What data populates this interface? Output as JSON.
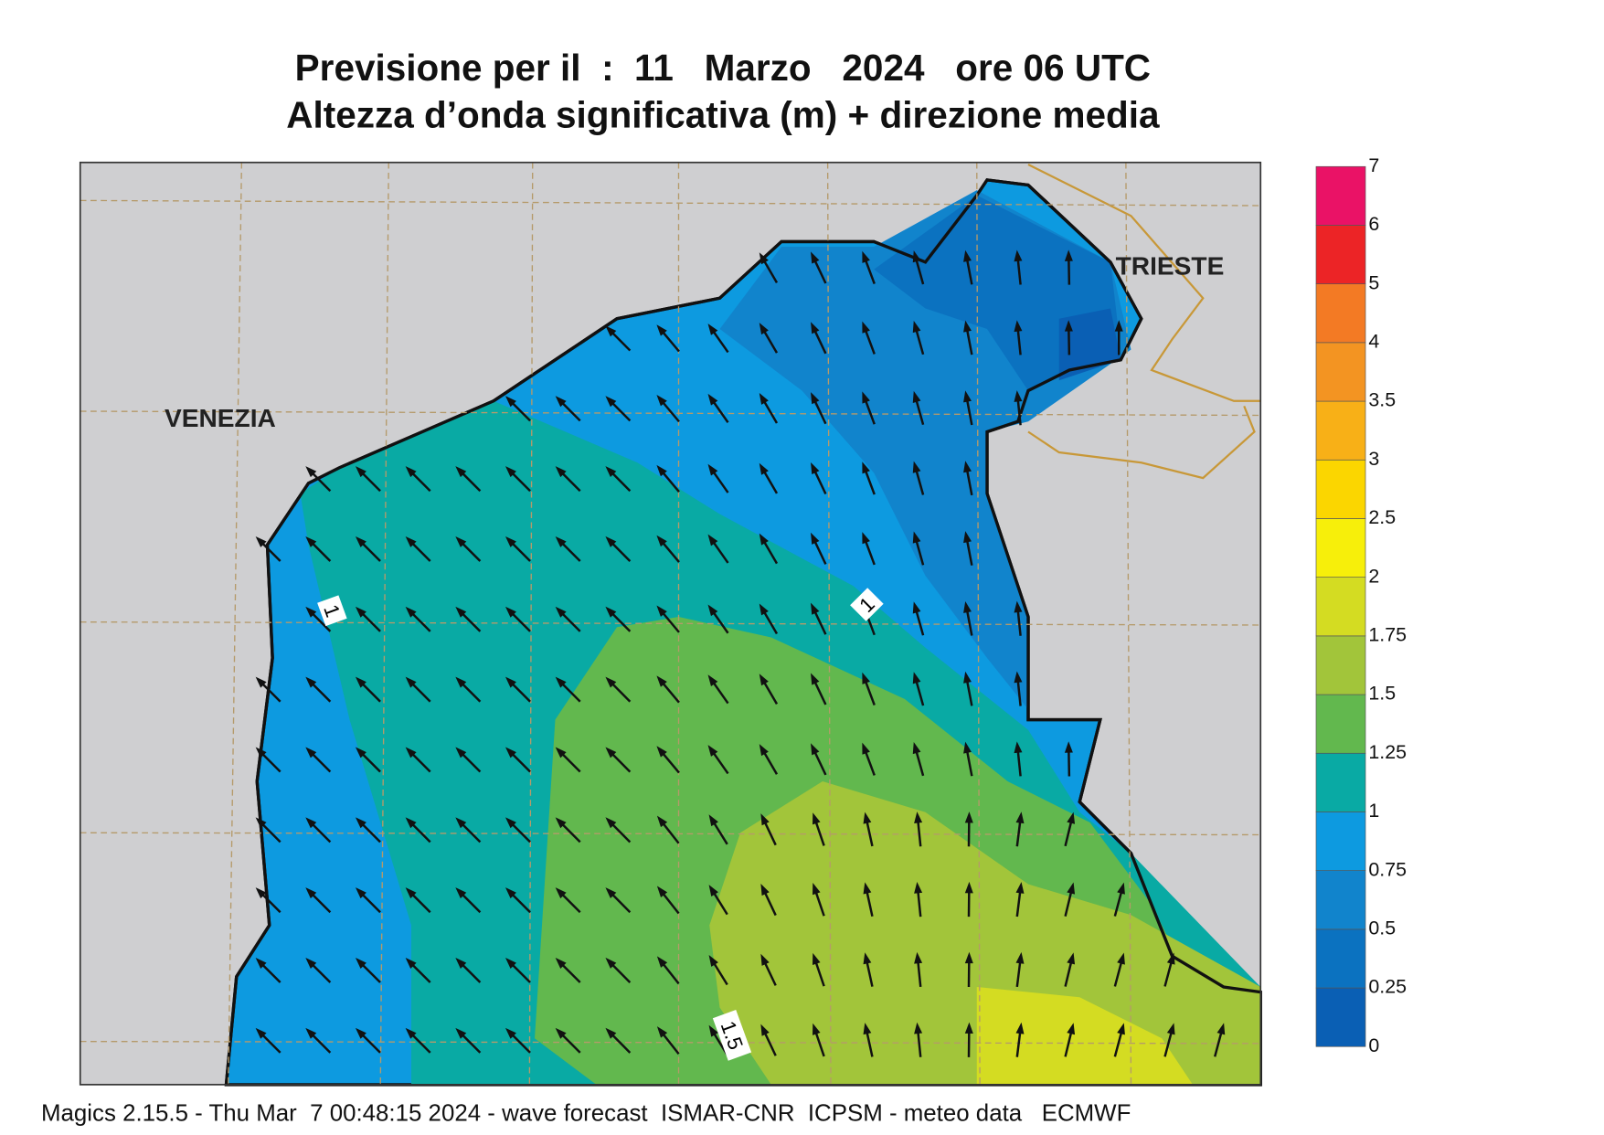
{
  "header": {
    "title": "Previsione per il  :  11   Marzo   2024   ore 06 UTC",
    "subtitle": "Altezza d’onda significativa (m) + direzione media"
  },
  "map": {
    "places": [
      "VENEZIA",
      "TRIESTE"
    ],
    "contour_labels": [
      "1",
      "1",
      "1.5"
    ]
  },
  "legend": {
    "levels": [
      0,
      0.25,
      0.5,
      0.75,
      1,
      1.25,
      1.5,
      1.75,
      2,
      2.5,
      3,
      3.5,
      4,
      5,
      6,
      7
    ],
    "colors": [
      "#0a5fb4",
      "#0b72c0",
      "#1184cc",
      "#0d9ae0",
      "#09aaa4",
      "#62b84e",
      "#a2c53a",
      "#d4dc22",
      "#f7ef0a",
      "#fbd600",
      "#f8b017",
      "#f39422",
      "#f37a24",
      "#ec2426",
      "#ea1266"
    ]
  },
  "footer": "Magics 2.15.5 - Thu Mar  7 00:48:15 2024 - wave forecast  ISMAR-CNR  ICPSM - meteo data   ECMWF"
}
